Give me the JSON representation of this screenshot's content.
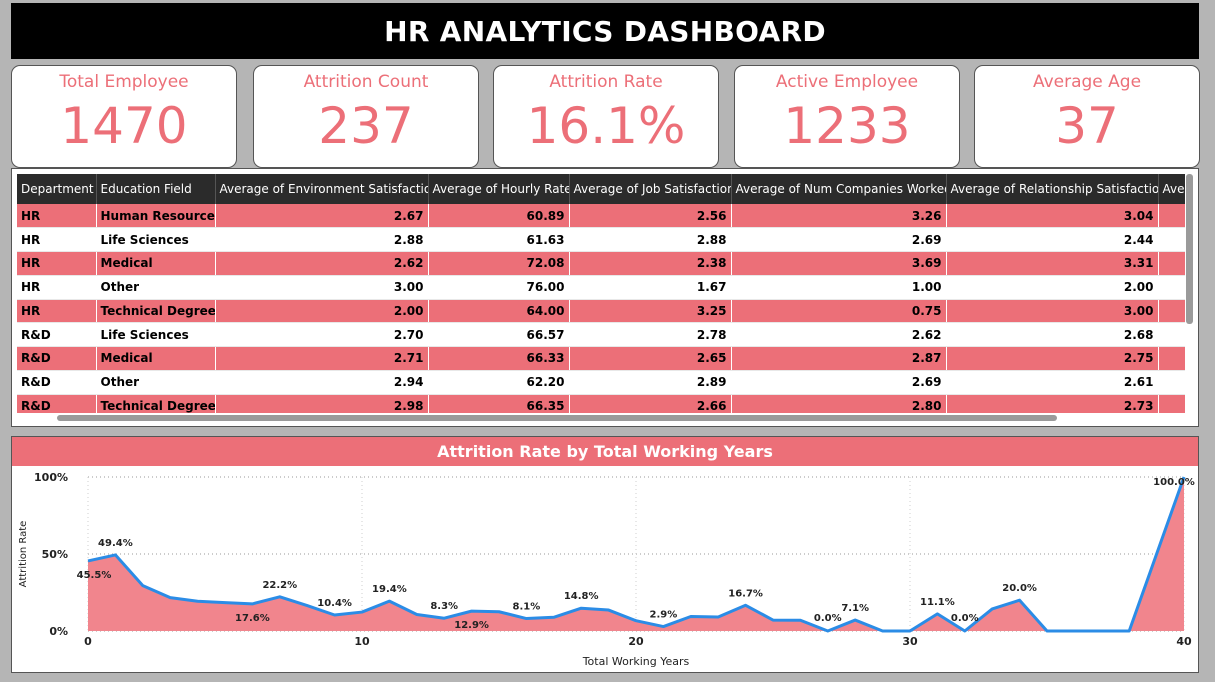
{
  "title": "HR ANALYTICS DASHBOARD",
  "kpis": [
    {
      "label": "Total Employee",
      "value": "1470"
    },
    {
      "label": "Attrition Count",
      "value": "237"
    },
    {
      "label": "Attrition Rate",
      "value": "16.1%"
    },
    {
      "label": "Active Employee",
      "value": "1233"
    },
    {
      "label": "Average Age",
      "value": "37"
    }
  ],
  "table": {
    "headers": [
      "Department",
      "Education Field",
      "Average of Environment Satisfaction",
      "Average of Hourly Rate",
      "Average of Job Satisfaction",
      "Average of Num Companies Worked",
      "Average of Relationship Satisfaction",
      "Average"
    ],
    "rows": [
      [
        "HR",
        "Human Resources",
        "2.67",
        "60.89",
        "2.56",
        "3.26",
        "3.04",
        ""
      ],
      [
        "HR",
        "Life Sciences",
        "2.88",
        "61.63",
        "2.88",
        "2.69",
        "2.44",
        ""
      ],
      [
        "HR",
        "Medical",
        "2.62",
        "72.08",
        "2.38",
        "3.69",
        "3.31",
        ""
      ],
      [
        "HR",
        "Other",
        "3.00",
        "76.00",
        "1.67",
        "1.00",
        "2.00",
        ""
      ],
      [
        "HR",
        "Technical Degree",
        "2.00",
        "64.00",
        "3.25",
        "0.75",
        "3.00",
        ""
      ],
      [
        "R&D",
        "Life Sciences",
        "2.70",
        "66.57",
        "2.78",
        "2.62",
        "2.68",
        ""
      ],
      [
        "R&D",
        "Medical",
        "2.71",
        "66.33",
        "2.65",
        "2.87",
        "2.75",
        ""
      ],
      [
        "R&D",
        "Other",
        "2.94",
        "62.20",
        "2.89",
        "2.69",
        "2.61",
        ""
      ],
      [
        "R&D",
        "Technical Degree",
        "2.98",
        "66.35",
        "2.66",
        "2.80",
        "2.73",
        ""
      ]
    ]
  },
  "chart_data": {
    "type": "area",
    "title": "Attrition Rate by Total Working Years",
    "xlabel": "Total Working Years",
    "ylabel": "Attrition Rate",
    "xlim": [
      0,
      40
    ],
    "ylim": [
      0,
      100
    ],
    "x_ticks": [
      "0",
      "10",
      "20",
      "30",
      "40"
    ],
    "y_ticks": [
      "0%",
      "50%",
      "100%"
    ],
    "x": [
      0,
      1,
      2,
      3,
      4,
      5,
      6,
      7,
      8,
      9,
      10,
      11,
      12,
      13,
      14,
      15,
      16,
      17,
      18,
      19,
      20,
      21,
      22,
      23,
      24,
      25,
      26,
      27,
      28,
      29,
      30,
      31,
      32,
      33,
      34,
      35,
      36,
      37,
      38,
      40
    ],
    "values": [
      45.5,
      49.4,
      29.5,
      21.7,
      19.3,
      18.4,
      17.6,
      22.2,
      16.5,
      10.4,
      12.3,
      19.4,
      10.7,
      8.3,
      12.9,
      12.5,
      8.1,
      8.9,
      14.8,
      13.6,
      6.7,
      2.9,
      9.4,
      9.1,
      16.7,
      7.1,
      7.0,
      0.0,
      7.1,
      0.0,
      0.0,
      11.1,
      0.0,
      14.3,
      20.0,
      0.0,
      0.0,
      0.0,
      0.0,
      100.0
    ],
    "labels": [
      {
        "x": 0,
        "y": 45.5,
        "text": "45.5%"
      },
      {
        "x": 1,
        "y": 49.4,
        "text": "49.4%"
      },
      {
        "x": 6,
        "y": 17.6,
        "text": "17.6%"
      },
      {
        "x": 7,
        "y": 22.2,
        "text": "22.2%"
      },
      {
        "x": 9,
        "y": 10.4,
        "text": "10.4%"
      },
      {
        "x": 11,
        "y": 19.4,
        "text": "19.4%"
      },
      {
        "x": 13,
        "y": 8.3,
        "text": "8.3%"
      },
      {
        "x": 14,
        "y": 12.9,
        "text": "12.9%"
      },
      {
        "x": 16,
        "y": 8.1,
        "text": "8.1%"
      },
      {
        "x": 18,
        "y": 14.8,
        "text": "14.8%"
      },
      {
        "x": 21,
        "y": 2.9,
        "text": "2.9%"
      },
      {
        "x": 24,
        "y": 16.7,
        "text": "16.7%"
      },
      {
        "x": 27,
        "y": 0.0,
        "text": "0.0%"
      },
      {
        "x": 28,
        "y": 7.1,
        "text": "7.1%"
      },
      {
        "x": 31,
        "y": 11.1,
        "text": "11.1%"
      },
      {
        "x": 32,
        "y": 0.0,
        "text": "0.0%"
      },
      {
        "x": 34,
        "y": 20.0,
        "text": "20.0%"
      },
      {
        "x": 40,
        "y": 100.0,
        "text": "100.0%"
      }
    ],
    "line_color": "#2b8ce6",
    "fill_color": "#f1858d",
    "grid": true
  }
}
